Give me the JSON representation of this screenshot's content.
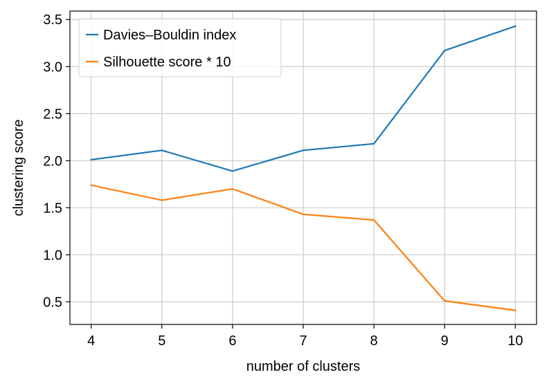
{
  "chart_data": {
    "type": "line",
    "title": "",
    "xlabel": "number of clusters",
    "ylabel": "clustering score",
    "x": [
      4,
      5,
      6,
      7,
      8,
      9,
      10
    ],
    "series": [
      {
        "name": "Davies–Bouldin index",
        "color": "#1f77b4",
        "values": [
          2.01,
          2.11,
          1.89,
          2.11,
          2.18,
          3.17,
          3.43
        ]
      },
      {
        "name": "Silhouette score * 10",
        "color": "#ff7f0e",
        "values": [
          1.74,
          1.58,
          1.7,
          1.43,
          1.37,
          0.51,
          0.41
        ]
      }
    ],
    "xlim": [
      3.7,
      10.3
    ],
    "ylim": [
      0.26,
      3.59
    ],
    "xticks": [
      "4",
      "5",
      "6",
      "7",
      "8",
      "9",
      "10"
    ],
    "yticks": [
      "0.5",
      "1.0",
      "1.5",
      "2.0",
      "2.5",
      "3.0",
      "3.5"
    ],
    "grid": true,
    "legend_position": "top-left"
  }
}
